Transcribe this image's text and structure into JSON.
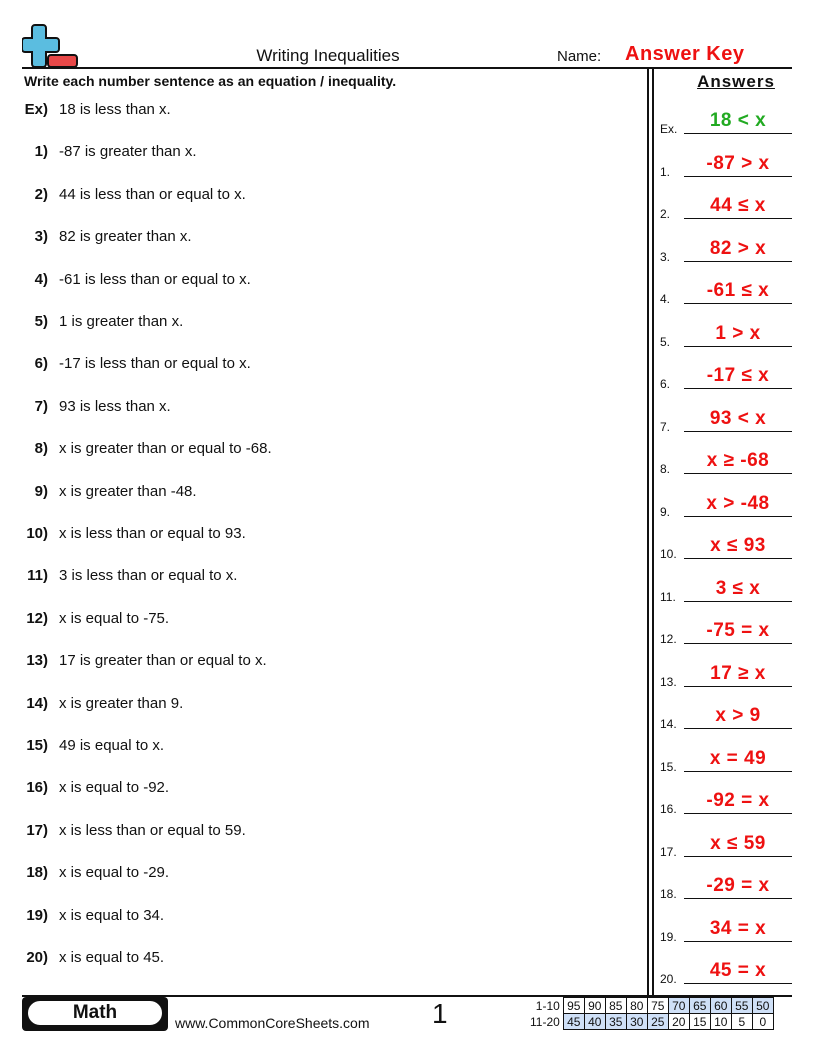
{
  "header": {
    "title": "Writing Inequalities",
    "name_label": "Name:",
    "name_value": "Answer Key",
    "logo_colors": {
      "plus": "#5bbde0",
      "minus": "#e84848"
    }
  },
  "instructions": "Write each number sentence as an equation / inequality.",
  "answers_heading": "Answers",
  "questions": [
    {
      "num": "Ex)",
      "text": "18 is less than x.",
      "label": "Ex.",
      "answer": "18 < x",
      "color": "#22aa22"
    },
    {
      "num": "1)",
      "text": "-87 is greater than x.",
      "label": "1.",
      "answer": "-87 > x"
    },
    {
      "num": "2)",
      "text": "44 is less than or equal to x.",
      "label": "2.",
      "answer": "44 ≤ x"
    },
    {
      "num": "3)",
      "text": "82 is greater than x.",
      "label": "3.",
      "answer": "82 > x"
    },
    {
      "num": "4)",
      "text": "-61 is less than or equal to x.",
      "label": "4.",
      "answer": "-61 ≤ x"
    },
    {
      "num": "5)",
      "text": "1 is greater than x.",
      "label": "5.",
      "answer": "1 > x"
    },
    {
      "num": "6)",
      "text": "-17 is less than or equal to x.",
      "label": "6.",
      "answer": "-17 ≤ x"
    },
    {
      "num": "7)",
      "text": "93 is less than x.",
      "label": "7.",
      "answer": "93 < x"
    },
    {
      "num": "8)",
      "text": "x is greater than or equal to -68.",
      "label": "8.",
      "answer": "x ≥ -68"
    },
    {
      "num": "9)",
      "text": "x is greater than -48.",
      "label": "9.",
      "answer": "x > -48"
    },
    {
      "num": "10)",
      "text": "x is less than or equal to 93.",
      "label": "10.",
      "answer": "x ≤ 93"
    },
    {
      "num": "11)",
      "text": "3 is less than or equal to x.",
      "label": "11.",
      "answer": "3 ≤ x"
    },
    {
      "num": "12)",
      "text": "x is equal to -75.",
      "label": "12.",
      "answer": "-75 = x"
    },
    {
      "num": "13)",
      "text": "17 is greater than or equal to x.",
      "label": "13.",
      "answer": "17 ≥ x"
    },
    {
      "num": "14)",
      "text": "x is greater than 9.",
      "label": "14.",
      "answer": "x > 9"
    },
    {
      "num": "15)",
      "text": "49 is equal to x.",
      "label": "15.",
      "answer": "x = 49"
    },
    {
      "num": "16)",
      "text": "x is equal to -92.",
      "label": "16.",
      "answer": "-92 = x"
    },
    {
      "num": "17)",
      "text": "x is less than or equal to 59.",
      "label": "17.",
      "answer": "x ≤ 59"
    },
    {
      "num": "18)",
      "text": "x is equal to -29.",
      "label": "18.",
      "answer": "-29 = x"
    },
    {
      "num": "19)",
      "text": "x is equal to 34.",
      "label": "19.",
      "answer": "34 = x"
    },
    {
      "num": "20)",
      "text": "x is equal to 45.",
      "label": "20.",
      "answer": "45 = x"
    }
  ],
  "footer": {
    "subject": "Math",
    "website": "www.CommonCoreSheets.com",
    "page": "1",
    "score_rows": [
      {
        "label": "1-10",
        "values": [
          "95",
          "90",
          "85",
          "80",
          "75",
          "70",
          "65",
          "60",
          "55",
          "50"
        ],
        "highlight_from": 5,
        "highlight_to": 9
      },
      {
        "label": "11-20",
        "values": [
          "45",
          "40",
          "35",
          "30",
          "25",
          "20",
          "15",
          "10",
          "5",
          "0"
        ],
        "highlight_from": 0,
        "highlight_to": 4
      }
    ]
  }
}
